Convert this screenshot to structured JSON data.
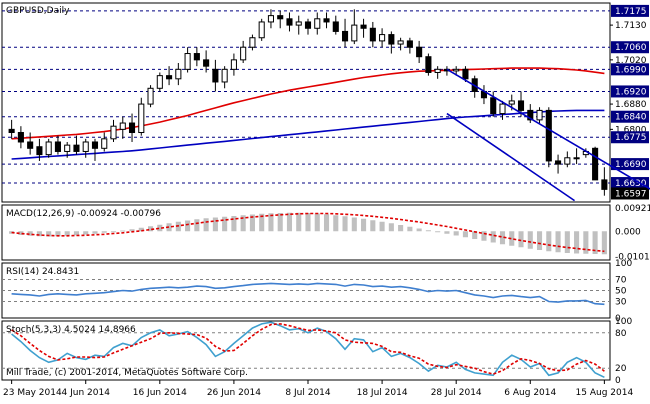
{
  "chart_data": [
    {
      "type": "candlestick",
      "title": "GBPUSD,Daily",
      "y_tick_labels": [
        "1.7175",
        "1.7130",
        "1.7060",
        "1.7020",
        "1.6990",
        "1.6920",
        "1.6880",
        "1.6840",
        "1.6800",
        "1.6775",
        "1.6690",
        "1.6630",
        "1.6597"
      ],
      "ylim": [
        1.657,
        1.72
      ],
      "x_tick_labels": [
        "23 May 2014",
        "4 Jun 2014",
        "16 Jun 2014",
        "26 Jun 2014",
        "8 Jul 2014",
        "18 Jul 2014",
        "28 Jul 2014",
        "6 Aug 2014",
        "15 Aug 2014"
      ],
      "dashed_levels": [
        1.7175,
        1.706,
        1.699,
        1.692,
        1.684,
        1.6775,
        1.669,
        1.663
      ],
      "highlighted_levels": [
        {
          "value": "1.7175",
          "color": "#000080"
        },
        {
          "value": "1.7060",
          "color": "#000080"
        },
        {
          "value": "1.6990",
          "color": "#000080"
        },
        {
          "value": "1.6920",
          "color": "#000080"
        },
        {
          "value": "1.6840",
          "color": "#000080"
        },
        {
          "value": "1.6775",
          "color": "#000080"
        },
        {
          "value": "1.6690",
          "color": "#000080"
        },
        {
          "value": "1.6630",
          "color": "#000080"
        },
        {
          "value": "1.6597",
          "color": "#000000"
        }
      ],
      "candles": [
        [
          1.68,
          1.683,
          1.677,
          1.679
        ],
        [
          1.679,
          1.681,
          1.674,
          1.676
        ],
        [
          1.676,
          1.679,
          1.672,
          1.674
        ],
        [
          1.6745,
          1.677,
          1.67,
          1.672
        ],
        [
          1.672,
          1.677,
          1.671,
          1.676
        ],
        [
          1.676,
          1.678,
          1.672,
          1.673
        ],
        [
          1.673,
          1.676,
          1.671,
          1.675
        ],
        [
          1.675,
          1.678,
          1.672,
          1.673
        ],
        [
          1.673,
          1.677,
          1.671,
          1.676
        ],
        [
          1.676,
          1.677,
          1.67,
          1.674
        ],
        [
          1.674,
          1.679,
          1.673,
          1.677
        ],
        [
          1.677,
          1.683,
          1.676,
          1.681
        ],
        [
          1.68,
          1.684,
          1.677,
          1.682
        ],
        [
          1.682,
          1.685,
          1.676,
          1.679
        ],
        [
          1.679,
          1.69,
          1.678,
          1.688
        ],
        [
          1.688,
          1.694,
          1.687,
          1.693
        ],
        [
          1.693,
          1.698,
          1.692,
          1.697
        ],
        [
          1.697,
          1.7,
          1.694,
          1.696
        ],
        [
          1.696,
          1.701,
          1.694,
          1.699
        ],
        [
          1.699,
          1.706,
          1.698,
          1.704
        ],
        [
          1.704,
          1.706,
          1.7,
          1.702
        ],
        [
          1.702,
          1.705,
          1.698,
          1.7
        ],
        [
          1.699,
          1.702,
          1.692,
          1.695
        ],
        [
          1.695,
          1.7,
          1.693,
          1.699
        ],
        [
          1.699,
          1.704,
          1.697,
          1.702
        ],
        [
          1.702,
          1.708,
          1.701,
          1.706
        ],
        [
          1.706,
          1.71,
          1.705,
          1.709
        ],
        [
          1.709,
          1.715,
          1.708,
          1.714
        ],
        [
          1.714,
          1.718,
          1.712,
          1.716
        ],
        [
          1.716,
          1.7175,
          1.712,
          1.715
        ],
        [
          1.715,
          1.717,
          1.711,
          1.713
        ],
        [
          1.713,
          1.716,
          1.71,
          1.714
        ],
        [
          1.714,
          1.715,
          1.71,
          1.712
        ],
        [
          1.712,
          1.717,
          1.71,
          1.715
        ],
        [
          1.715,
          1.717,
          1.712,
          1.714
        ],
        [
          1.714,
          1.716,
          1.71,
          1.711
        ],
        [
          1.711,
          1.715,
          1.706,
          1.708
        ],
        [
          1.708,
          1.718,
          1.707,
          1.713
        ],
        [
          1.713,
          1.715,
          1.709,
          1.712
        ],
        [
          1.712,
          1.714,
          1.706,
          1.708
        ],
        [
          1.708,
          1.712,
          1.706,
          1.71
        ],
        [
          1.71,
          1.711,
          1.704,
          1.707
        ],
        [
          1.707,
          1.709,
          1.705,
          1.708
        ],
        [
          1.708,
          1.709,
          1.704,
          1.706
        ],
        [
          1.706,
          1.708,
          1.701,
          1.703
        ],
        [
          1.703,
          1.704,
          1.697,
          1.698
        ],
        [
          1.698,
          1.7,
          1.696,
          1.699
        ],
        [
          1.699,
          1.7,
          1.697,
          1.6985
        ],
        [
          1.6985,
          1.7,
          1.697,
          1.699
        ],
        [
          1.699,
          1.7,
          1.695,
          1.696
        ],
        [
          1.696,
          1.697,
          1.69,
          1.692
        ],
        [
          1.692,
          1.694,
          1.688,
          1.69
        ],
        [
          1.69,
          1.692,
          1.684,
          1.685
        ],
        [
          1.685,
          1.689,
          1.683,
          1.688
        ],
        [
          1.688,
          1.691,
          1.686,
          1.689
        ],
        [
          1.689,
          1.692,
          1.684,
          1.686
        ],
        [
          1.686,
          1.688,
          1.682,
          1.683
        ],
        [
          1.683,
          1.687,
          1.682,
          1.686
        ],
        [
          1.686,
          1.687,
          1.668,
          1.67
        ],
        [
          1.67,
          1.672,
          1.666,
          1.669
        ],
        [
          1.669,
          1.673,
          1.668,
          1.671
        ],
        [
          1.671,
          1.674,
          1.669,
          1.671
        ],
        [
          1.672,
          1.674,
          1.671,
          1.673
        ],
        [
          1.674,
          1.6745,
          1.664,
          1.664
        ],
        [
          1.664,
          1.668,
          1.659,
          1.661
        ]
      ],
      "overlays": [
        {
          "kind": "moving-average",
          "color": "#e00000",
          "values": [
            1.677,
            1.6772,
            1.6774,
            1.6776,
            1.6778,
            1.678,
            1.6782,
            1.6784,
            1.6787,
            1.679,
            1.6793,
            1.6797,
            1.6801,
            1.6806,
            1.6811,
            1.6817,
            1.6823,
            1.683,
            1.6837,
            1.6844,
            1.6852,
            1.686,
            1.6868,
            1.6876,
            1.6884,
            1.6891,
            1.6898,
            1.6905,
            1.6912,
            1.6918,
            1.6924,
            1.6929,
            1.6934,
            1.6939,
            1.6944,
            1.6949,
            1.6954,
            1.6959,
            1.6964,
            1.6968,
            1.6972,
            1.6976,
            1.6979,
            1.6982,
            1.6984,
            1.6985,
            1.6986,
            1.6987,
            1.6988,
            1.6989,
            1.699,
            1.6991,
            1.6992,
            1.6993,
            1.6994,
            1.6994,
            1.6994,
            1.6994,
            1.6993,
            1.6992,
            1.699,
            1.6988,
            1.6985,
            1.6981,
            1.6977
          ]
        },
        {
          "kind": "moving-average",
          "color": "#0000c0",
          "values": [
            1.6706,
            1.6708,
            1.671,
            1.6712,
            1.6714,
            1.6716,
            1.6718,
            1.672,
            1.6722,
            1.6724,
            1.6726,
            1.6728,
            1.673,
            1.6732,
            1.6735,
            1.6738,
            1.6741,
            1.6744,
            1.6747,
            1.675,
            1.6753,
            1.6756,
            1.6759,
            1.6762,
            1.6765,
            1.6768,
            1.6771,
            1.6774,
            1.6777,
            1.678,
            1.6783,
            1.6786,
            1.6789,
            1.6792,
            1.6795,
            1.6798,
            1.6801,
            1.6804,
            1.6807,
            1.681,
            1.6813,
            1.6816,
            1.6819,
            1.6822,
            1.6825,
            1.6828,
            1.6831,
            1.6834,
            1.6837,
            1.6839,
            1.6841,
            1.6843,
            1.6845,
            1.6847,
            1.6849,
            1.6851,
            1.6853,
            1.6855,
            1.6857,
            1.6858,
            1.6859,
            1.686,
            1.686,
            1.686,
            1.686
          ]
        }
      ],
      "trend_channel": [
        {
          "from": [
            47,
            1.699
          ],
          "to": [
            69,
            1.661
          ]
        },
        {
          "from": [
            47,
            1.685
          ],
          "to": [
            60,
            1.659
          ]
        }
      ]
    },
    {
      "type": "histogram",
      "title": "MACD(12,26,9) -0.00924 -0.00796",
      "y_tick_labels": [
        "0.00921",
        "0.000",
        "-0.01012"
      ],
      "ylim": [
        -0.0115,
        0.0105
      ],
      "histogram_values": [
        -0.001,
        -0.0015,
        -0.0018,
        -0.002,
        -0.0021,
        -0.002,
        -0.0018,
        -0.0016,
        -0.0013,
        -0.001,
        -0.0006,
        -0.0002,
        0.0003,
        0.0008,
        0.0014,
        0.002,
        0.0026,
        0.0032,
        0.0038,
        0.0043,
        0.0048,
        0.0052,
        0.0055,
        0.0058,
        0.0061,
        0.0064,
        0.0067,
        0.007,
        0.0072,
        0.0073,
        0.0074,
        0.0074,
        0.0073,
        0.0071,
        0.0068,
        0.0064,
        0.006,
        0.0055,
        0.005,
        0.0044,
        0.0038,
        0.0032,
        0.0025,
        0.0018,
        0.0011,
        0.0004,
        -0.0003,
        -0.001,
        -0.0017,
        -0.0024,
        -0.0031,
        -0.0038,
        -0.0045,
        -0.0052,
        -0.0058,
        -0.0064,
        -0.007,
        -0.0075,
        -0.008,
        -0.0084,
        -0.0087,
        -0.0089,
        -0.009,
        -0.0091,
        -0.0092
      ],
      "signal_values": [
        -0.0005,
        -0.0009,
        -0.0012,
        -0.0015,
        -0.0017,
        -0.0018,
        -0.0018,
        -0.0017,
        -0.0016,
        -0.0014,
        -0.0012,
        -0.0009,
        -0.0006,
        -0.0002,
        0.0002,
        0.0007,
        0.0012,
        0.0017,
        0.0022,
        0.0027,
        0.0032,
        0.0037,
        0.0041,
        0.0045,
        0.0049,
        0.0053,
        0.0057,
        0.006,
        0.0063,
        0.0066,
        0.0068,
        0.007,
        0.0071,
        0.0071,
        0.0071,
        0.007,
        0.0068,
        0.0066,
        0.0063,
        0.006,
        0.0056,
        0.0052,
        0.0047,
        0.0042,
        0.0037,
        0.0031,
        0.0025,
        0.0019,
        0.0012,
        0.0005,
        -0.0002,
        -0.0009,
        -0.0016,
        -0.0023,
        -0.003,
        -0.0037,
        -0.0043,
        -0.0049,
        -0.0055,
        -0.006,
        -0.0065,
        -0.0069,
        -0.0073,
        -0.0077,
        -0.008
      ],
      "bar_color": "#c0c0c0",
      "signal_color": "#e00000"
    },
    {
      "type": "line",
      "title": "RSI(14) 24.8431",
      "y_tick_labels": [
        "100",
        "70",
        "50",
        "30",
        "0"
      ],
      "ylim": [
        0,
        100
      ],
      "dashed_levels": [
        70,
        50,
        30
      ],
      "values": [
        44,
        43,
        42,
        40,
        43,
        44,
        43,
        42,
        44,
        45,
        46,
        48,
        50,
        49,
        52,
        54,
        55,
        56,
        55,
        56,
        58,
        57,
        54,
        55,
        57,
        59,
        61,
        62,
        63,
        62,
        61,
        62,
        61,
        63,
        62,
        61,
        58,
        61,
        60,
        57,
        58,
        56,
        57,
        55,
        52,
        48,
        50,
        49,
        50,
        46,
        42,
        40,
        37,
        40,
        41,
        39,
        37,
        39,
        30,
        29,
        31,
        31,
        32,
        26,
        25
      ],
      "color": "#3f7fcf"
    },
    {
      "type": "line",
      "title": "Stoch(5,3,3) 4.5024 14.8966",
      "y_tick_labels": [
        "100",
        "80",
        "20",
        "0"
      ],
      "ylim": [
        0,
        100
      ],
      "dashed_levels": [
        80,
        20
      ],
      "series": [
        {
          "values": [
            78,
            65,
            50,
            38,
            30,
            34,
            45,
            38,
            35,
            42,
            40,
            55,
            62,
            58,
            72,
            80,
            85,
            75,
            78,
            82,
            72,
            60,
            40,
            48,
            62,
            75,
            88,
            95,
            98,
            92,
            85,
            87,
            80,
            88,
            82,
            70,
            52,
            70,
            68,
            48,
            55,
            40,
            45,
            38,
            28,
            15,
            25,
            22,
            30,
            18,
            12,
            10,
            8,
            30,
            42,
            35,
            22,
            28,
            8,
            12,
            30,
            38,
            30,
            12,
            4.5
          ],
          "color": "#3fa0cf"
        },
        {
          "values": [
            85,
            75,
            62,
            50,
            40,
            34,
            36,
            39,
            39,
            38,
            39,
            46,
            52,
            58,
            64,
            70,
            79,
            80,
            79,
            78,
            77,
            71,
            57,
            49,
            50,
            62,
            75,
            86,
            94,
            95,
            92,
            88,
            84,
            85,
            83,
            80,
            68,
            64,
            63,
            62,
            57,
            48,
            47,
            41,
            37,
            27,
            23,
            21,
            26,
            23,
            20,
            14,
            10,
            16,
            27,
            36,
            33,
            28,
            19,
            16,
            17,
            27,
            33,
            27,
            14.9
          ],
          "color": "#e00000"
        }
      ],
      "footer": "Mill Trade, (c) 2001-2014, MetaQuotes Software Corp."
    }
  ]
}
